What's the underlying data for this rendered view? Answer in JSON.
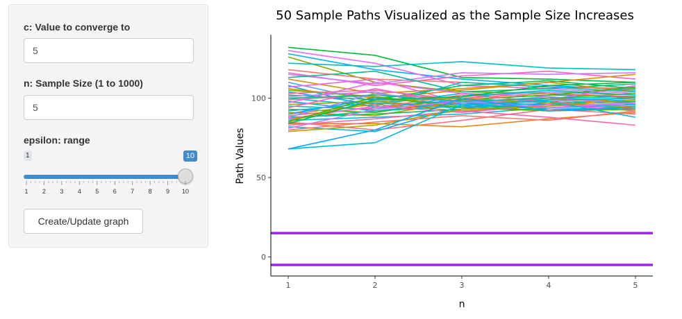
{
  "sidebar": {
    "c_label": "c: Value to converge to",
    "c_value": "5",
    "n_label": "n: Sample Size (1 to 1000)",
    "n_value": "5",
    "epsilon_label": "epsilon: range",
    "slider": {
      "min": 1,
      "max": 10,
      "value": 10,
      "min_label": "1",
      "value_label": "10",
      "ticks": [
        "1",
        "2",
        "3",
        "4",
        "5",
        "6",
        "7",
        "8",
        "9",
        "10"
      ]
    },
    "button_label": "Create/Update graph"
  },
  "colors": {
    "accent": "#428bca",
    "bound_line": "#a020f0"
  },
  "chart_data": {
    "type": "line",
    "title": "50 Sample Paths Visualized as the Sample Size Increases",
    "xlabel": "n",
    "ylabel": "Path Values",
    "xlim": [
      0.8,
      5.2
    ],
    "ylim": [
      -12,
      140
    ],
    "x_ticks": [
      1,
      2,
      3,
      4,
      5
    ],
    "y_ticks": [
      0,
      50,
      100
    ],
    "grid": false,
    "legend": "none",
    "x": [
      1,
      2,
      3,
      4,
      5
    ],
    "hlines": [
      {
        "y": 15,
        "color": "#a020f0"
      },
      {
        "y": -5,
        "color": "#a020f0"
      }
    ],
    "series": [
      {
        "color": "#00ba38",
        "values": [
          132,
          127,
          113,
          112,
          110
        ]
      },
      {
        "color": "#00b0f6",
        "values": [
          128,
          118,
          112,
          108,
          105
        ]
      },
      {
        "color": "#e76bf3",
        "values": [
          130,
          122,
          108,
          106,
          103
        ]
      },
      {
        "color": "#7cae00",
        "values": [
          126,
          110,
          104,
          103,
          100
        ]
      },
      {
        "color": "#00bfc4",
        "values": [
          122,
          120,
          123,
          119,
          118
        ]
      },
      {
        "color": "#f8766d",
        "values": [
          118,
          112,
          110,
          107,
          106
        ]
      },
      {
        "color": "#ff61c3",
        "values": [
          116,
          108,
          114,
          117,
          112
        ]
      },
      {
        "color": "#c77cff",
        "values": [
          115,
          109,
          116,
          115,
          116
        ]
      },
      {
        "color": "#00c08b",
        "values": [
          113,
          117,
          104,
          106,
          109
        ]
      },
      {
        "color": "#cd9600",
        "values": [
          112,
          103,
          106,
          110,
          104
        ]
      },
      {
        "color": "#619cff",
        "values": [
          110,
          98,
          101,
          104,
          102
        ]
      },
      {
        "color": "#00a9ff",
        "values": [
          108,
          94,
          99,
          102,
          101
        ]
      },
      {
        "color": "#f564e3",
        "values": [
          107,
          112,
          97,
          99,
          108
        ]
      },
      {
        "color": "#de8c00",
        "values": [
          106,
          100,
          105,
          110,
          115
        ]
      },
      {
        "color": "#7cae00",
        "values": [
          105,
          101,
          95,
          100,
          103
        ]
      },
      {
        "color": "#00b4f0",
        "values": [
          104,
          96,
          103,
          97,
          99
        ]
      },
      {
        "color": "#ff6c91",
        "values": [
          103,
          105,
          99,
          98,
          100
        ]
      },
      {
        "color": "#00bc59",
        "values": [
          102,
          99,
          108,
          111,
          106
        ]
      },
      {
        "color": "#b385ff",
        "values": [
          101,
          104,
          92,
          95,
          97
        ]
      },
      {
        "color": "#00bfc4",
        "values": [
          100,
          95,
          110,
          107,
          104
        ]
      },
      {
        "color": "#f8766d",
        "values": [
          99,
          102,
          100,
          103,
          101
        ]
      },
      {
        "color": "#00a5ff",
        "values": [
          98,
          92,
          97,
          96,
          98
        ]
      },
      {
        "color": "#ef67eb",
        "values": [
          97,
          110,
          103,
          101,
          96
        ]
      },
      {
        "color": "#a3a500",
        "values": [
          96,
          98,
          94,
          99,
          100
        ]
      },
      {
        "color": "#00c0b8",
        "values": [
          95,
          93,
          101,
          105,
          102
        ]
      },
      {
        "color": "#fb61d7",
        "values": [
          94,
          106,
          96,
          94,
          95
        ]
      },
      {
        "color": "#39b600",
        "values": [
          93,
          91,
          99,
          102,
          107
        ]
      },
      {
        "color": "#00b6eb",
        "values": [
          92,
          97,
          94,
          97,
          99
        ]
      },
      {
        "color": "#e58700",
        "values": [
          91,
          89,
          98,
          100,
          97
        ]
      },
      {
        "color": "#d89000",
        "values": [
          90,
          96,
          92,
          95,
          101
        ]
      },
      {
        "color": "#00a8ff",
        "values": [
          90,
          100,
          96,
          93,
          94
        ]
      },
      {
        "color": "#ff6a98",
        "values": [
          89,
          94,
          102,
          98,
          93
        ]
      },
      {
        "color": "#00bd5c",
        "values": [
          88,
          90,
          93,
          96,
          98
        ]
      },
      {
        "color": "#9590ff",
        "values": [
          88,
          103,
          97,
          101,
          96
        ]
      },
      {
        "color": "#00c1a3",
        "values": [
          87,
          92,
          95,
          92,
          95
        ]
      },
      {
        "color": "#f763e0",
        "values": [
          87,
          95,
          91,
          96,
          92
        ]
      },
      {
        "color": "#c49a00",
        "values": [
          86,
          98,
          100,
          97,
          94
        ]
      },
      {
        "color": "#00bbda",
        "values": [
          86,
          88,
          90,
          94,
          96
        ]
      },
      {
        "color": "#fc717f",
        "values": [
          85,
          80,
          86,
          93,
          90
        ]
      },
      {
        "color": "#53b400",
        "values": [
          85,
          101,
          94,
          92,
          93
        ]
      },
      {
        "color": "#e7861b",
        "values": [
          84,
          84,
          82,
          87,
          91
        ]
      },
      {
        "color": "#ff66a8",
        "values": [
          83,
          87,
          92,
          88,
          83
        ]
      },
      {
        "color": "#00b3f2",
        "values": [
          82,
          79,
          95,
          99,
          100
        ]
      },
      {
        "color": "#d575fe",
        "values": [
          81,
          93,
          98,
          94,
          97
        ]
      },
      {
        "color": "#00ba42",
        "values": [
          84,
          99,
          101,
          108,
          110
        ]
      },
      {
        "color": "#f8766d",
        "values": [
          80,
          85,
          89,
          86,
          92
        ]
      },
      {
        "color": "#b79f00",
        "values": [
          79,
          83,
          93,
          95,
          99
        ]
      },
      {
        "color": "#00c19a",
        "values": [
          100,
          102,
          98,
          100,
          101
        ]
      },
      {
        "color": "#00bcd8",
        "values": [
          68,
          72,
          96,
          98,
          88
        ]
      },
      {
        "color": "#00a9ff",
        "values": [
          68,
          80,
          100,
          92,
          94
        ]
      }
    ]
  }
}
